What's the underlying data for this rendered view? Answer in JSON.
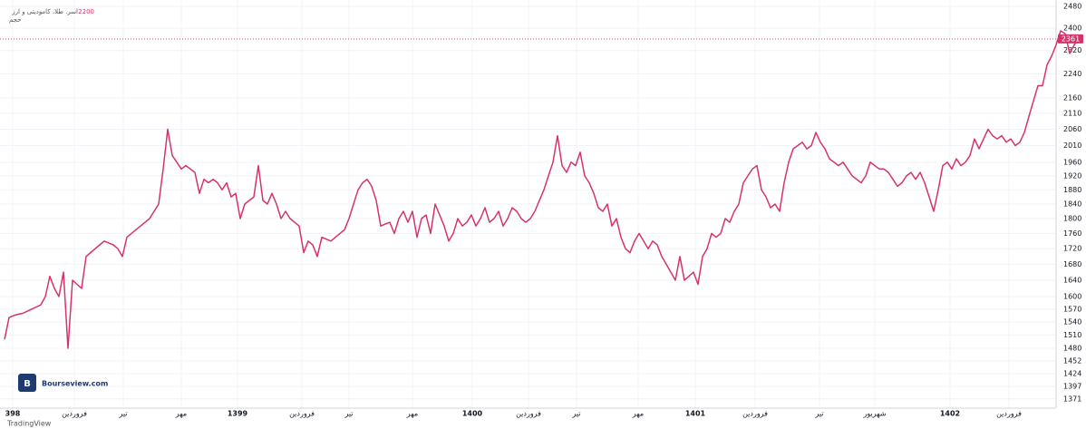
{
  "chart_data": {
    "type": "line",
    "title": "اسر. طلا، کامودیتی و ارز",
    "subtitle": "حجم",
    "watermark": "Bourseview.com",
    "footer": "TradingView",
    "log_scale": true,
    "grid": true,
    "color": "#d6336c",
    "values": [
      1500,
      1550,
      1555,
      1558,
      1560,
      1565,
      1570,
      1575,
      1580,
      1600,
      1650,
      1620,
      1600,
      1660,
      1480,
      1640,
      1630,
      1620,
      1700,
      1710,
      1720,
      1730,
      1740,
      1735,
      1730,
      1720,
      1700,
      1750,
      1760,
      1770,
      1780,
      1790,
      1800,
      1820,
      1840,
      1940,
      2060,
      1980,
      1960,
      1940,
      1950,
      1940,
      1930,
      1870,
      1910,
      1900,
      1910,
      1900,
      1880,
      1900,
      1860,
      1870,
      1800,
      1840,
      1850,
      1860,
      1950,
      1850,
      1840,
      1870,
      1840,
      1800,
      1820,
      1800,
      1790,
      1780,
      1710,
      1740,
      1730,
      1700,
      1750,
      1745,
      1740,
      1750,
      1760,
      1770,
      1800,
      1840,
      1880,
      1900,
      1910,
      1890,
      1850,
      1780,
      1785,
      1790,
      1760,
      1800,
      1820,
      1790,
      1820,
      1750,
      1800,
      1810,
      1760,
      1840,
      1810,
      1780,
      1740,
      1760,
      1800,
      1780,
      1790,
      1810,
      1780,
      1800,
      1830,
      1790,
      1800,
      1820,
      1780,
      1800,
      1830,
      1820,
      1800,
      1790,
      1800,
      1820,
      1850,
      1880,
      1920,
      1960,
      2040,
      1950,
      1930,
      1960,
      1950,
      1990,
      1920,
      1900,
      1870,
      1830,
      1820,
      1840,
      1780,
      1800,
      1750,
      1720,
      1710,
      1740,
      1760,
      1740,
      1720,
      1740,
      1730,
      1700,
      1680,
      1660,
      1640,
      1700,
      1640,
      1650,
      1660,
      1630,
      1700,
      1720,
      1760,
      1750,
      1760,
      1800,
      1790,
      1820,
      1840,
      1900,
      1920,
      1940,
      1950,
      1880,
      1860,
      1830,
      1840,
      1820,
      1900,
      1960,
      2000,
      2010,
      2020,
      2000,
      2010,
      2050,
      2020,
      2000,
      1970,
      1960,
      1950,
      1960,
      1940,
      1920,
      1910,
      1900,
      1920,
      1960,
      1950,
      1940,
      1940,
      1930,
      1910,
      1890,
      1900,
      1920,
      1930,
      1910,
      1930,
      1900,
      1860,
      1820,
      1880,
      1950,
      1960,
      1940,
      1970,
      1950,
      1960,
      1980,
      2030,
      2000,
      2030,
      2060,
      2040,
      2030,
      2040,
      2020,
      2030,
      2010,
      2020,
      2050,
      2100,
      2150,
      2200,
      2200,
      2270,
      2300,
      2340,
      2390,
      2380,
      2310,
      2340,
      2361
    ],
    "xlim": [
      -1,
      232
    ],
    "xticks": [
      {
        "value": 1.8,
        "label": "398"
      },
      {
        "value": 15.4,
        "label": "فروردین"
      },
      {
        "value": 26.2,
        "label": "تیر"
      },
      {
        "value": 39,
        "label": "مهر"
      },
      {
        "value": 51.4,
        "label": "1399"
      },
      {
        "value": 65.6,
        "label": "فروردین"
      },
      {
        "value": 76,
        "label": "تیر"
      },
      {
        "value": 90,
        "label": "مهر"
      },
      {
        "value": 103.2,
        "label": "1400"
      },
      {
        "value": 115.6,
        "label": "فروردین"
      },
      {
        "value": 126.2,
        "label": "تیر"
      },
      {
        "value": 139.8,
        "label": "مهر"
      },
      {
        "value": 152.4,
        "label": "1401"
      },
      {
        "value": 165.6,
        "label": "فروردین"
      },
      {
        "value": 179.8,
        "label": "تیر"
      },
      {
        "value": 192,
        "label": "شهریور"
      },
      {
        "value": 208.6,
        "label": "1402"
      },
      {
        "value": 221.6,
        "label": "فروردین"
      }
    ],
    "ylim": [
      1352,
      2504
    ],
    "yticks": [
      1371,
      1397,
      1424,
      1452,
      1480,
      1510,
      1540,
      1570,
      1600,
      1640,
      1680,
      1720,
      1760,
      1800,
      1840,
      1880,
      1920,
      1960,
      2010,
      2060,
      2110,
      2160,
      2240,
      2320,
      2400,
      2480
    ]
  }
}
